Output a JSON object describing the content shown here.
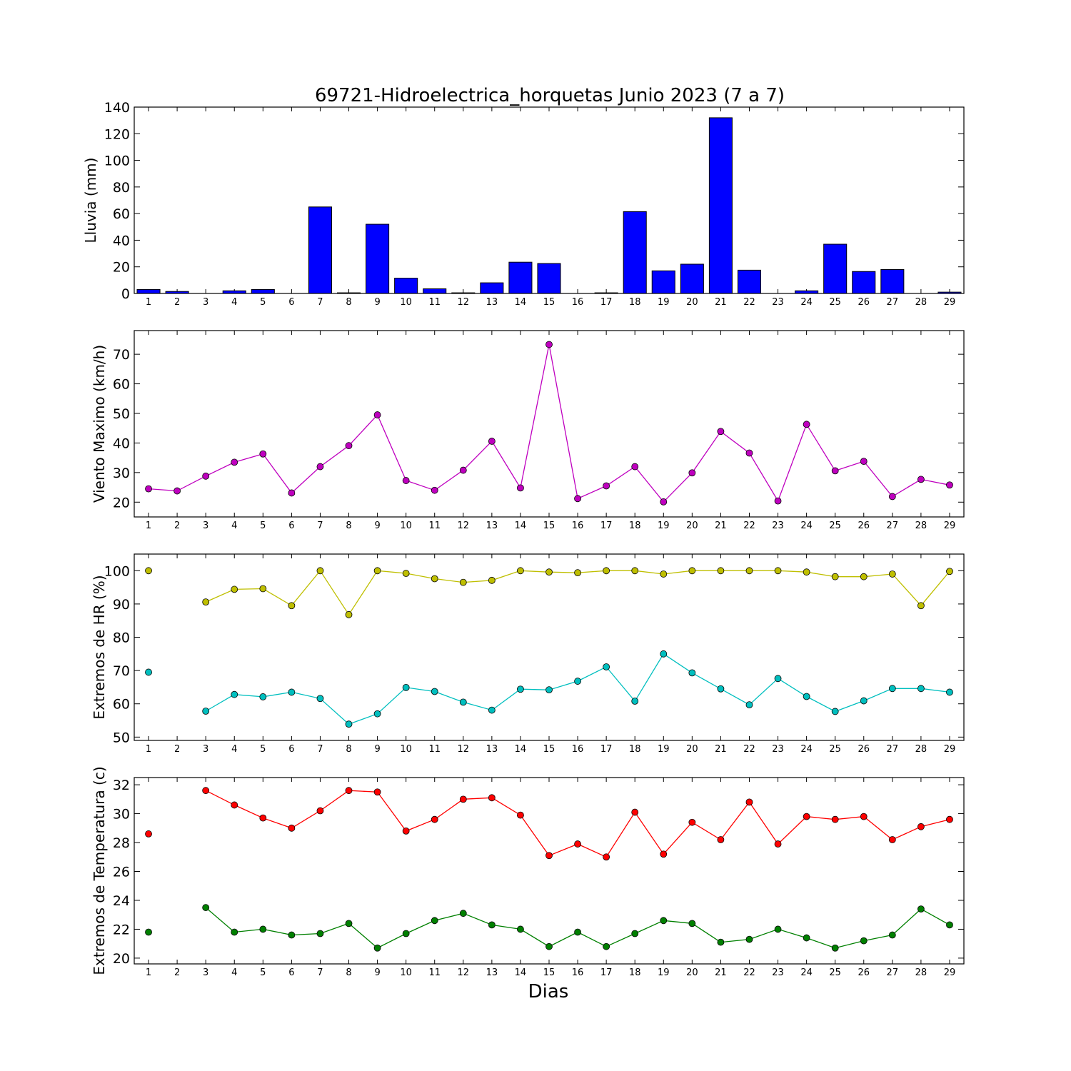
{
  "chart_data": {
    "type": "multi-panel",
    "title": "69721-Hidroelectrica_horquetas Junio 2023  (7 a 7)",
    "xlabel": "Dias",
    "days": [
      1,
      2,
      3,
      4,
      5,
      6,
      7,
      8,
      9,
      10,
      11,
      12,
      13,
      14,
      15,
      16,
      17,
      18,
      19,
      20,
      21,
      22,
      23,
      24,
      25,
      26,
      27,
      28,
      29
    ],
    "panels": [
      {
        "type": "bar",
        "ylabel": "Lluvia (mm)",
        "ylim": [
          0,
          140
        ],
        "yticks": [
          0,
          20,
          40,
          60,
          80,
          100,
          120,
          140
        ],
        "series": [
          {
            "color": "#0000ff",
            "values": [
              3,
              1.5,
              0,
              2,
              3,
              0,
              65,
              0.5,
              52,
              11.5,
              3.5,
              0.5,
              8,
              23.5,
              22.5,
              0,
              0.5,
              61.5,
              17,
              22,
              132,
              17.5,
              0,
              2,
              37,
              16.5,
              18,
              0,
              1
            ]
          }
        ]
      },
      {
        "type": "line",
        "ylabel": "Viento Maximo (km/h)",
        "ylim": [
          15,
          78
        ],
        "yticks": [
          20,
          30,
          40,
          50,
          60,
          70
        ],
        "series": [
          {
            "color": "#bf00bf",
            "values": [
              24.5,
              23.8,
              28.8,
              33.5,
              36.3,
              23.1,
              32,
              39.1,
              49.5,
              27.3,
              24,
              30.8,
              40.6,
              24.8,
              73.3,
              21.2,
              25.5,
              32,
              20.1,
              29.9,
              43.9,
              36.6,
              20.4,
              46.3,
              30.6,
              33.8,
              21.9,
              27.7,
              25.8
            ]
          }
        ]
      },
      {
        "type": "line",
        "ylabel": "Extremos de HR (%)",
        "ylim": [
          49,
          105
        ],
        "yticks": [
          50,
          60,
          70,
          80,
          90,
          100
        ],
        "series": [
          {
            "color": "#bfbf00",
            "values": [
              100,
              null,
              90.6,
              94.4,
              94.6,
              89.5,
              100,
              86.8,
              100,
              99.2,
              97.6,
              96.5,
              97.1,
              100,
              99.6,
              99.4,
              100,
              100,
              99,
              100,
              100,
              100,
              100,
              99.6,
              98.2,
              98.2,
              99,
              89.5,
              99.8
            ]
          },
          {
            "color": "#00bfbf",
            "values": [
              69.5,
              null,
              57.8,
              62.8,
              62.1,
              63.5,
              61.6,
              53.9,
              57,
              64.9,
              63.7,
              60.5,
              58.1,
              64.4,
              64.2,
              66.8,
              71.1,
              60.8,
              75,
              69.3,
              64.5,
              59.7,
              67.6,
              62.2,
              57.7,
              60.9,
              64.6,
              64.6,
              63.5
            ]
          }
        ]
      },
      {
        "type": "line",
        "ylabel": "Extremos de Temperatura (c)",
        "ylim": [
          19.6,
          32.5
        ],
        "yticks": [
          20,
          22,
          24,
          26,
          28,
          30,
          32
        ],
        "series": [
          {
            "color": "#ff0000",
            "values": [
              28.6,
              null,
              31.6,
              30.6,
              29.7,
              29,
              30.2,
              31.6,
              31.5,
              28.8,
              29.6,
              31,
              31.1,
              29.9,
              27.1,
              27.9,
              27,
              30.1,
              27.2,
              29.4,
              28.2,
              30.8,
              27.9,
              29.8,
              29.6,
              29.8,
              28.2,
              29.1,
              29.6
            ]
          },
          {
            "color": "#008000",
            "values": [
              21.8,
              null,
              23.5,
              21.8,
              22,
              21.6,
              21.7,
              22.4,
              20.7,
              21.7,
              22.6,
              23.1,
              22.3,
              22,
              20.8,
              21.8,
              20.8,
              21.7,
              22.6,
              22.4,
              21.1,
              21.3,
              22,
              21.4,
              20.7,
              21.2,
              21.6,
              23.4,
              22.3
            ]
          }
        ]
      }
    ]
  }
}
